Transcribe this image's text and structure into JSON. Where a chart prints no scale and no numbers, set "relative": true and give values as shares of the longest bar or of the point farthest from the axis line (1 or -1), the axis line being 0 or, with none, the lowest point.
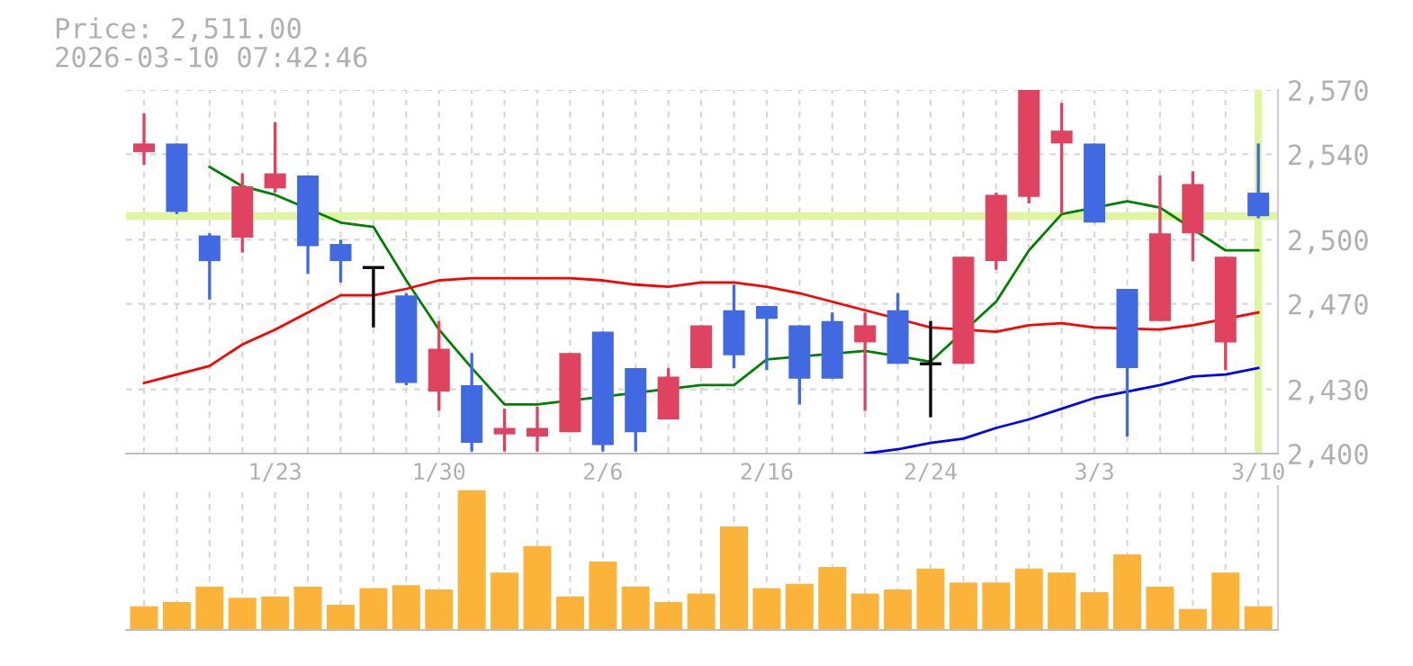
{
  "chart_data": [
    {
      "type": "candlestick",
      "title": "Price: 2,511.00",
      "subtitle": "2026-03-10 07:42:46",
      "categories": [
        null,
        null,
        null,
        null,
        "1/23",
        null,
        null,
        null,
        null,
        "1/30",
        null,
        null,
        null,
        null,
        "2/6",
        null,
        null,
        null,
        null,
        "2/16",
        null,
        null,
        null,
        null,
        "2/24",
        null,
        null,
        null,
        null,
        "3/3",
        null,
        null,
        null,
        null,
        "3/10"
      ],
      "ohlc": [
        [
          2541,
          2559,
          2535,
          2545
        ],
        [
          2545,
          2545,
          2512,
          2513
        ],
        [
          2502,
          2503,
          2472,
          2490
        ],
        [
          2501,
          2531,
          2494,
          2525
        ],
        [
          2524,
          2555,
          2522,
          2531
        ],
        [
          2530,
          2530,
          2484,
          2497
        ],
        [
          2498,
          2500,
          2480,
          2490
        ],
        [
          2487,
          2487,
          2459,
          2487
        ],
        [
          2474,
          2475,
          2432,
          2433
        ],
        [
          2429,
          2462,
          2420,
          2449
        ],
        [
          2432,
          2447,
          2401,
          2405
        ],
        [
          2409,
          2421,
          2401,
          2412
        ],
        [
          2408,
          2422,
          2401,
          2412
        ],
        [
          2410,
          2447,
          2410,
          2447
        ],
        [
          2457,
          2457,
          2401,
          2404
        ],
        [
          2440,
          2440,
          2401,
          2410
        ],
        [
          2416,
          2440,
          2416,
          2436
        ],
        [
          2440,
          2460,
          2440,
          2460
        ],
        [
          2467,
          2479,
          2440,
          2446
        ],
        [
          2469,
          2469,
          2439,
          2463
        ],
        [
          2460,
          2460,
          2423,
          2435
        ],
        [
          2462,
          2466,
          2435,
          2435
        ],
        [
          2452,
          2466,
          2420,
          2460
        ],
        [
          2467,
          2475,
          2442,
          2442
        ],
        [
          2442,
          2462,
          2417,
          2442
        ],
        [
          2442,
          2492,
          2442,
          2492
        ],
        [
          2490,
          2522,
          2486,
          2521
        ],
        [
          2520,
          2570,
          2517,
          2570
        ],
        [
          2545,
          2564,
          2512,
          2551
        ],
        [
          2545,
          2545,
          2508,
          2508
        ],
        [
          2477,
          2477,
          2408,
          2440
        ],
        [
          2462,
          2530,
          2462,
          2503
        ],
        [
          2503,
          2532,
          2490,
          2526
        ],
        [
          2452,
          2492,
          2439,
          2492
        ],
        [
          2522,
          2545,
          2510,
          2511
        ]
      ],
      "colors": [
        "#e0435f",
        "#4169e1",
        "#4169e1",
        "#e0435f",
        "#e0435f",
        "#4169e1",
        "#4169e1",
        "#000000",
        "#4169e1",
        "#e0435f",
        "#4169e1",
        "#e0435f",
        "#e0435f",
        "#e0435f",
        "#4169e1",
        "#4169e1",
        "#e0435f",
        "#e0435f",
        "#4169e1",
        "#4169e1",
        "#4169e1",
        "#4169e1",
        "#e0435f",
        "#4169e1",
        "#000000",
        "#e0435f",
        "#e0435f",
        "#e0435f",
        "#e0435f",
        "#4169e1",
        "#4169e1",
        "#e0435f",
        "#e0435f",
        "#e0435f",
        "#4169e1"
      ],
      "series": [
        {
          "type": "line",
          "color": "#008000",
          "values": [
            null,
            null,
            2534,
            2525,
            2521,
            null,
            2508,
            2506,
            2481,
            2458,
            2440,
            2423,
            2423,
            null,
            null,
            null,
            null,
            2432,
            2432,
            2444,
            null,
            null,
            2448,
            null,
            2443,
            null,
            2471,
            2495,
            2512,
            null,
            2518,
            2515,
            2505,
            2495,
            2495
          ]
        },
        {
          "type": "line",
          "color": "#ff0000",
          "values": [
            2433,
            2437,
            2441,
            2451,
            2458,
            2466,
            2474,
            2474,
            2477,
            2481,
            2482,
            2482,
            2482,
            2482,
            2481,
            2479,
            2478,
            2480,
            2480,
            2478,
            2475,
            2471,
            2467,
            null,
            2459,
            null,
            2457,
            2460,
            2461,
            2459,
            null,
            2458,
            2460,
            null,
            2466
          ]
        },
        {
          "type": "line",
          "color": "#0000ff",
          "values": [
            null,
            null,
            null,
            null,
            null,
            null,
            null,
            null,
            null,
            null,
            null,
            null,
            null,
            null,
            null,
            null,
            null,
            null,
            null,
            null,
            null,
            null,
            2400,
            2402,
            2405,
            2407,
            2412,
            2416,
            2421,
            2426,
            2429,
            2432,
            2436,
            2437,
            2440
          ]
        }
      ],
      "ylim": [
        2400,
        2570
      ],
      "yticks": [
        {
          "value": 2400,
          "label": "2,400"
        },
        {
          "value": 2430,
          "label": "2,430"
        },
        {
          "value": 2470,
          "label": "2,470"
        },
        {
          "value": 2500,
          "label": "2,500"
        },
        {
          "value": 2540,
          "label": "2,540"
        },
        {
          "value": 2570,
          "label": "2,570"
        }
      ],
      "ref_lines": [
        {
          "axis": "y",
          "value": 2511,
          "color": "#e0f5a0"
        },
        {
          "axis": "x",
          "value": "3/10",
          "color": "#e0f5a0"
        }
      ],
      "grid": true
    },
    {
      "type": "bar",
      "relative": true,
      "color": "#fbb33a",
      "grid": "x",
      "categories": [
        null,
        null,
        null,
        null,
        null,
        null,
        null,
        null,
        null,
        null,
        null,
        null,
        null,
        null,
        null,
        null,
        null,
        null,
        null,
        null,
        null,
        null,
        null,
        null,
        null,
        null,
        null,
        null,
        null,
        null,
        null,
        null,
        null,
        null,
        null
      ],
      "values": [
        0.17,
        0.2,
        0.31,
        0.23,
        0.24,
        0.31,
        0.18,
        0.3,
        0.32,
        0.29,
        1,
        0.41,
        0.6,
        0.24,
        0.49,
        0.31,
        0.2,
        0.26,
        0.74,
        0.3,
        0.33,
        0.45,
        0.26,
        0.29,
        0.44,
        0.34,
        0.34,
        0.44,
        0.41,
        0.27,
        0.54,
        0.31,
        0.15,
        0.41,
        0.17
      ]
    }
  ]
}
